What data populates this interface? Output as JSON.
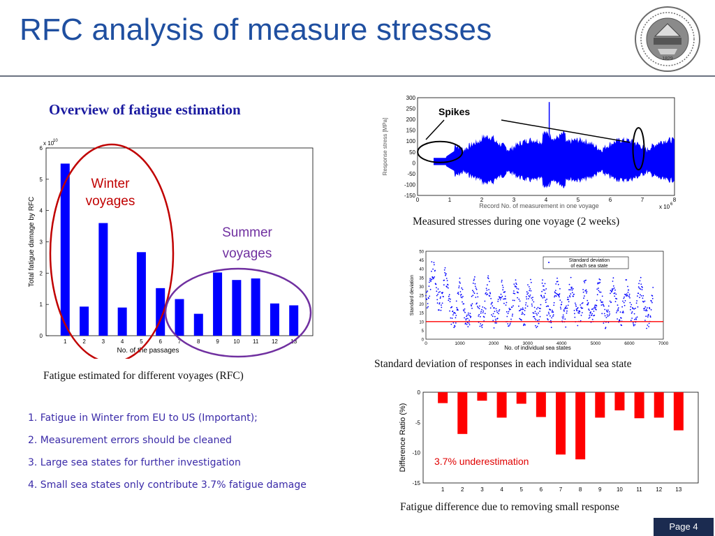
{
  "slide": {
    "title": "RFC analysis of measure stresses",
    "overview_heading": "Overview of  fatigue estimation",
    "page_label": "Page 4"
  },
  "notes": [
    "1.  Fatigue in Winter from EU to US (Important);",
    "2.  Measurement errors should be cleaned",
    "3.  Large sea states for further investigation",
    "4.  Small sea states only contribute 3.7% fatigue damage"
  ],
  "captions": {
    "fatigue_chart": "Fatigue estimated for different voyages (RFC)",
    "stress_chart": "Measured stresses during one voyage (2 weeks)",
    "std_chart": "Standard deviation of responses in each individual sea state",
    "diff_chart": "Fatigue difference due to removing small response"
  },
  "logo": {
    "year": "1829"
  },
  "chart_data": [
    {
      "type": "bar",
      "categories": [
        "1",
        "2",
        "3",
        "4",
        "5",
        "6",
        "7",
        "8",
        "9",
        "10",
        "11",
        "12",
        "13"
      ],
      "values": [
        5.5,
        0.93,
        3.6,
        0.9,
        2.67,
        1.52,
        1.17,
        0.7,
        2.02,
        1.78,
        1.83,
        1.03,
        0.97
      ],
      "ylabel": "Total fatigue damage by RFC",
      "xlabel": "No. of the passages",
      "scale_label": "x 10",
      "scale_exp": "10",
      "ylim": [
        0,
        6
      ],
      "yticks": [
        0,
        1,
        2,
        3,
        4,
        5,
        6
      ],
      "color": "#0000ff",
      "annotations": {
        "winter": "Winter voyages",
        "summer": "Summer voyages"
      },
      "annotation_colors": {
        "winter": "#c00000",
        "summer": "#7030a0"
      }
    },
    {
      "type": "line",
      "ylabel": "Response stress [MPa]",
      "xlabel": "Record No. of measurement in one voyage",
      "scale_label": "x 10",
      "scale_exp": "6",
      "xlim": [
        0,
        8
      ],
      "ylim": [
        -150,
        300
      ],
      "xticks": [
        0,
        1,
        2,
        3,
        4,
        5,
        6,
        7,
        8
      ],
      "yticks": [
        -150,
        -100,
        -50,
        0,
        50,
        100,
        150,
        200,
        250,
        300
      ],
      "annotation": "Spikes",
      "color": "#0000ff"
    },
    {
      "type": "scatter",
      "ylabel": "Standard deviation",
      "xlabel": "No. of individual sea states",
      "xlim": [
        0,
        7000
      ],
      "ylim": [
        0,
        50
      ],
      "xticks": [
        0,
        1000,
        2000,
        3000,
        4000,
        5000,
        6000,
        7000
      ],
      "yticks": [
        0,
        5,
        10,
        15,
        20,
        25,
        30,
        35,
        40,
        45,
        50
      ],
      "legend": "Standard deviation of each sea state",
      "threshold": 10,
      "color": "#0000ff",
      "threshold_color": "#ff0000"
    },
    {
      "type": "bar",
      "categories": [
        "1",
        "2",
        "3",
        "4",
        "5",
        "6",
        "7",
        "8",
        "9",
        "10",
        "11",
        "12",
        "13"
      ],
      "values": [
        -1.8,
        -6.9,
        -1.4,
        -4.2,
        -1.9,
        -4.1,
        -10.3,
        -11.1,
        -4.2,
        -3.0,
        -4.3,
        -4.2,
        -6.3
      ],
      "ylabel": "Difference Ratio (%)",
      "ylim": [
        -15,
        0
      ],
      "yticks": [
        0,
        -5,
        -10,
        -15
      ],
      "annotation": "3.7% underestimation",
      "color": "#ff0000"
    }
  ]
}
